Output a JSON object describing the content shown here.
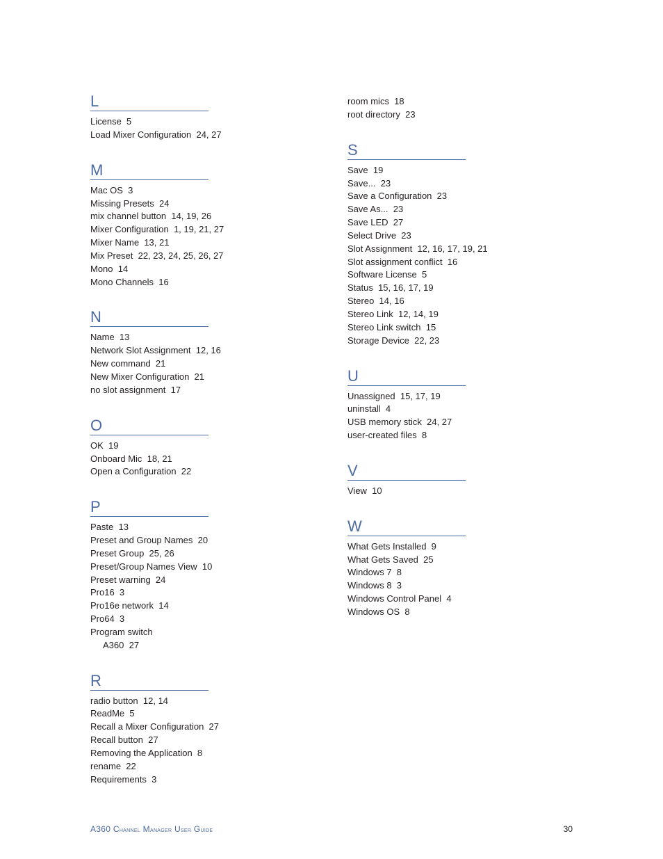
{
  "footer": {
    "guide_title_a": "A360 C",
    "guide_title_b": "hannel",
    "guide_title_c": " M",
    "guide_title_d": "anager",
    "guide_title_e": " U",
    "guide_title_f": "ser",
    "guide_title_g": " G",
    "guide_title_h": "uide",
    "page_number": "30"
  },
  "colors": {
    "heading": "#4c6aa0",
    "body": "#231f20",
    "rule": "#4c6aa0",
    "background": "#ffffff"
  },
  "typography": {
    "heading_fontsize": 22,
    "body_fontsize": 13,
    "footer_fontsize": 11,
    "line_height": 1.45
  },
  "columns": [
    {
      "sections": [
        {
          "letter": "L",
          "entries": [
            {
              "text": "License  5"
            },
            {
              "text": "Load Mixer Configuration  24, 27"
            }
          ]
        },
        {
          "letter": "M",
          "entries": [
            {
              "text": "Mac OS  3"
            },
            {
              "text": "Missing Presets  24"
            },
            {
              "text": "mix channel button  14, 19, 26"
            },
            {
              "text": "Mixer Configuration  1, 19, 21, 27"
            },
            {
              "text": "Mixer Name  13, 21"
            },
            {
              "text": "Mix Preset  22, 23, 24, 25, 26, 27"
            },
            {
              "text": "Mono  14"
            },
            {
              "text": "Mono Channels  16"
            }
          ]
        },
        {
          "letter": "N",
          "entries": [
            {
              "text": "Name  13"
            },
            {
              "text": "Network Slot Assignment  12, 16"
            },
            {
              "text": "New command  21"
            },
            {
              "text": "New Mixer Configuration  21"
            },
            {
              "text": "no slot assignment  17"
            }
          ]
        },
        {
          "letter": "O",
          "entries": [
            {
              "text": "OK  19"
            },
            {
              "text": "Onboard Mic  18, 21"
            },
            {
              "text": "Open a Configuration  22"
            }
          ]
        },
        {
          "letter": "P",
          "entries": [
            {
              "text": "Paste  13"
            },
            {
              "text": "Preset and Group Names  20"
            },
            {
              "text": "Preset Group  25, 26"
            },
            {
              "text": "Preset/Group Names View  10"
            },
            {
              "text": "Preset warning  24"
            },
            {
              "text": "Pro16  3"
            },
            {
              "text": "Pro16e network  14"
            },
            {
              "text": "Pro64  3"
            },
            {
              "text": "Program switch"
            },
            {
              "text": "A360  27",
              "sub": true
            }
          ]
        },
        {
          "letter": "R",
          "entries": [
            {
              "text": "radio button  12, 14"
            },
            {
              "text": "ReadMe  5"
            },
            {
              "text": "Recall a Mixer Configuration  27"
            },
            {
              "text": "Recall button  27"
            },
            {
              "text": "Removing the Application  8"
            },
            {
              "text": "rename  22"
            },
            {
              "text": "Requirements  3"
            }
          ]
        }
      ]
    },
    {
      "pre_entries": [
        {
          "text": "room mics  18"
        },
        {
          "text": "root directory  23"
        }
      ],
      "sections": [
        {
          "letter": "S",
          "entries": [
            {
              "text": "Save  19"
            },
            {
              "text": "Save...  23"
            },
            {
              "text": "Save a Configuration  23"
            },
            {
              "text": "Save As...  23"
            },
            {
              "text": "Save LED  27"
            },
            {
              "text": "Select Drive  23"
            },
            {
              "text": "Slot Assignment  12, 16, 17, 19, 21"
            },
            {
              "text": "Slot assignment conflict  16"
            },
            {
              "text": "Software License  5"
            },
            {
              "text": "Status  15, 16, 17, 19"
            },
            {
              "text": "Stereo  14, 16"
            },
            {
              "text": "Stereo Link  12, 14, 19"
            },
            {
              "text": "Stereo Link switch  15"
            },
            {
              "text": "Storage Device  22, 23"
            }
          ]
        },
        {
          "letter": "U",
          "entries": [
            {
              "text": "Unassigned  15, 17, 19"
            },
            {
              "text": "uninstall  4"
            },
            {
              "text": "USB memory stick  24, 27"
            },
            {
              "text": "user-created files  8"
            }
          ]
        },
        {
          "letter": "V",
          "entries": [
            {
              "text": "View  10"
            }
          ]
        },
        {
          "letter": "W",
          "entries": [
            {
              "text": "What Gets Installed  9"
            },
            {
              "text": "What Gets Saved  25"
            },
            {
              "text": "Windows 7  8"
            },
            {
              "text": "Windows 8  3"
            },
            {
              "text": "Windows Control Panel  4"
            },
            {
              "text": "Windows OS  8"
            }
          ]
        }
      ]
    }
  ]
}
